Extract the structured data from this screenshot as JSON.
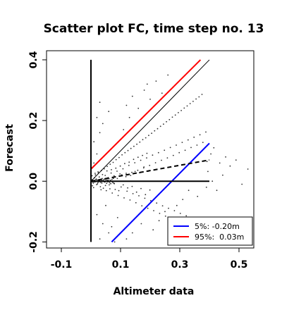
{
  "chart_data": {
    "type": "scatter",
    "title": "Scatter plot FC, time step no. 13",
    "xlabel": "Altimeter data",
    "ylabel": "Forecast",
    "xlim": [
      -0.15,
      0.55
    ],
    "ylim": [
      -0.22,
      0.43
    ],
    "x_ticks": [
      -0.1,
      0.1,
      0.3,
      0.5
    ],
    "x_tick_labels": [
      "-0.1",
      "0.1",
      "0.3",
      "0.5"
    ],
    "y_ticks": [
      -0.2,
      0.0,
      0.2,
      0.4
    ],
    "y_tick_labels": [
      "-0.2",
      "0.0",
      "0.2",
      "0.4"
    ],
    "grid": false,
    "legend_position": "bottom-right",
    "series": [
      {
        "name": "5%: -0.20m",
        "kind": "quantile-line",
        "color": "#0000ff",
        "x": [
          0.07,
          0.4
        ],
        "y": [
          -0.2,
          0.125
        ]
      },
      {
        "name": "95%:  0.03m",
        "kind": "quantile-line",
        "color": "#ff0000",
        "x": [
          0.0,
          0.37
        ],
        "y": [
          0.04,
          0.4
        ]
      },
      {
        "kind": "identity-line",
        "color": "#000000",
        "x": [
          0.0,
          0.4
        ],
        "y": [
          0.0,
          0.4
        ]
      },
      {
        "kind": "regression-line",
        "dashed": true,
        "color": "#000000",
        "x": [
          0.0,
          0.4
        ],
        "y": [
          0.0,
          0.07
        ]
      },
      {
        "kind": "zero-line-horizontal",
        "color": "#000000",
        "x": [
          0.0,
          0.4
        ],
        "y": [
          0.0,
          0.0
        ]
      },
      {
        "kind": "zero-line-vertical",
        "color": "#000000",
        "x": [
          0.0,
          0.0
        ],
        "y": [
          -0.2,
          0.4
        ]
      }
    ],
    "points": [
      [
        0.003,
        0.004
      ],
      [
        0.008,
        -0.006
      ],
      [
        0.012,
        0.011
      ],
      [
        0.005,
        -0.015
      ],
      [
        0.018,
        0.007
      ],
      [
        0.022,
        -0.009
      ],
      [
        0.015,
        0.021
      ],
      [
        0.028,
        0.014
      ],
      [
        0.032,
        -0.018
      ],
      [
        0.025,
        0.028
      ],
      [
        0.038,
        0.009
      ],
      [
        0.042,
        -0.023
      ],
      [
        0.035,
        0.035
      ],
      [
        0.048,
        0.019
      ],
      [
        0.052,
        -0.031
      ],
      [
        0.045,
        0.041
      ],
      [
        0.058,
        0.012
      ],
      [
        0.062,
        -0.012
      ],
      [
        0.055,
        0.049
      ],
      [
        0.068,
        0.027
      ],
      [
        0.072,
        -0.039
      ],
      [
        0.065,
        0.056
      ],
      [
        0.078,
        0.018
      ],
      [
        0.082,
        -0.027
      ],
      [
        0.075,
        0.062
      ],
      [
        0.088,
        0.033
      ],
      [
        0.092,
        -0.047
      ],
      [
        0.085,
        0.071
      ],
      [
        0.098,
        0.024
      ],
      [
        0.102,
        -0.019
      ],
      [
        0.095,
        0.078
      ],
      [
        0.108,
        0.041
      ],
      [
        0.112,
        -0.055
      ],
      [
        0.105,
        0.087
      ],
      [
        0.118,
        0.015
      ],
      [
        0.122,
        -0.033
      ],
      [
        0.115,
        0.094
      ],
      [
        0.128,
        0.052
      ],
      [
        0.132,
        -0.062
      ],
      [
        0.125,
        0.101
      ],
      [
        0.138,
        0.029
      ],
      [
        0.142,
        -0.041
      ],
      [
        0.135,
        0.108
      ],
      [
        0.148,
        0.061
      ],
      [
        0.152,
        -0.071
      ],
      [
        0.145,
        0.115
      ],
      [
        0.158,
        0.036
      ],
      [
        0.162,
        -0.048
      ],
      [
        0.155,
        0.122
      ],
      [
        0.168,
        0.069
      ],
      [
        0.172,
        -0.081
      ],
      [
        0.165,
        0.129
      ],
      [
        0.178,
        0.044
      ],
      [
        0.182,
        -0.056
      ],
      [
        0.175,
        0.137
      ],
      [
        0.188,
        0.077
      ],
      [
        0.192,
        -0.089
      ],
      [
        0.185,
        0.143
      ],
      [
        0.198,
        0.052
      ],
      [
        0.202,
        -0.064
      ],
      [
        0.195,
        0.151
      ],
      [
        0.208,
        0.086
      ],
      [
        0.212,
        -0.097
      ],
      [
        0.205,
        0.158
      ],
      [
        0.218,
        0.061
      ],
      [
        0.222,
        -0.072
      ],
      [
        0.215,
        0.166
      ],
      [
        0.228,
        0.094
      ],
      [
        0.232,
        -0.106
      ],
      [
        0.225,
        0.173
      ],
      [
        0.238,
        0.069
      ],
      [
        0.242,
        -0.081
      ],
      [
        0.235,
        0.181
      ],
      [
        0.248,
        0.102
      ],
      [
        0.252,
        -0.115
      ],
      [
        0.245,
        0.188
      ],
      [
        0.258,
        0.077
      ],
      [
        0.262,
        -0.089
      ],
      [
        0.255,
        0.196
      ],
      [
        0.268,
        0.111
      ],
      [
        0.272,
        -0.122
      ],
      [
        0.265,
        0.203
      ],
      [
        0.278,
        0.085
      ],
      [
        0.282,
        -0.097
      ],
      [
        0.275,
        0.211
      ],
      [
        0.288,
        0.119
      ],
      [
        0.292,
        -0.131
      ],
      [
        0.285,
        0.218
      ],
      [
        0.298,
        0.094
      ],
      [
        0.302,
        -0.106
      ],
      [
        0.295,
        0.226
      ],
      [
        0.308,
        0.128
      ],
      [
        0.312,
        -0.139
      ],
      [
        0.305,
        0.233
      ],
      [
        0.318,
        0.102
      ],
      [
        0.322,
        -0.114
      ],
      [
        0.315,
        0.241
      ],
      [
        0.328,
        0.136
      ],
      [
        0.332,
        -0.148
      ],
      [
        0.325,
        0.248
      ],
      [
        0.338,
        0.111
      ],
      [
        0.342,
        -0.122
      ],
      [
        0.335,
        0.256
      ],
      [
        0.348,
        0.145
      ],
      [
        0.352,
        -0.156
      ],
      [
        0.345,
        0.263
      ],
      [
        0.358,
        0.119
      ],
      [
        0.362,
        -0.131
      ],
      [
        0.355,
        0.271
      ],
      [
        0.368,
        0.153
      ],
      [
        0.372,
        -0.164
      ],
      [
        0.365,
        0.278
      ],
      [
        0.378,
        0.128
      ],
      [
        0.382,
        -0.139
      ],
      [
        0.375,
        0.286
      ],
      [
        0.388,
        0.162
      ],
      [
        0.392,
        0.065
      ],
      [
        0.395,
        0.032
      ],
      [
        0.405,
        0.09
      ],
      [
        0.415,
        0.11
      ],
      [
        0.425,
        -0.03
      ],
      [
        0.435,
        0.06
      ],
      [
        0.445,
        0.02
      ],
      [
        0.455,
        0.08
      ],
      [
        0.47,
        0.05
      ],
      [
        0.49,
        0.07
      ],
      [
        0.51,
        -0.01
      ],
      [
        0.53,
        0.04
      ],
      [
        0.01,
        0.06
      ],
      [
        0.02,
        0.09
      ],
      [
        0.01,
        0.13
      ],
      [
        0.03,
        0.16
      ],
      [
        0.02,
        0.21
      ],
      [
        0.04,
        0.19
      ],
      [
        0.06,
        0.23
      ],
      [
        0.03,
        0.26
      ],
      [
        0.05,
        -0.08
      ],
      [
        0.02,
        -0.11
      ],
      [
        0.04,
        -0.14
      ],
      [
        0.06,
        -0.17
      ],
      [
        0.03,
        -0.19
      ],
      [
        0.08,
        -0.2
      ],
      [
        0.09,
        -0.12
      ],
      [
        0.07,
        -0.15
      ],
      [
        0.11,
        0.17
      ],
      [
        0.13,
        0.21
      ],
      [
        0.12,
        0.25
      ],
      [
        0.14,
        0.28
      ],
      [
        0.16,
        0.24
      ],
      [
        0.18,
        0.3
      ],
      [
        0.2,
        0.27
      ],
      [
        0.22,
        0.33
      ],
      [
        0.24,
        0.29
      ],
      [
        0.26,
        0.35
      ],
      [
        0.19,
        0.32
      ],
      [
        0.17,
        -0.14
      ],
      [
        0.14,
        -0.17
      ],
      [
        0.12,
        -0.19
      ],
      [
        0.21,
        -0.16
      ],
      [
        0.23,
        -0.13
      ],
      [
        0.25,
        -0.1
      ],
      [
        0.27,
        -0.16
      ],
      [
        0.29,
        -0.08
      ],
      [
        0.31,
        -0.06
      ],
      [
        0.33,
        -0.03
      ],
      [
        0.36,
        -0.05
      ],
      [
        0.39,
        -0.02
      ],
      [
        0.41,
        0.0
      ],
      [
        0.004,
        0.018
      ],
      [
        0.009,
        -0.021
      ],
      [
        0.014,
        0.026
      ],
      [
        0.019,
        -0.011
      ],
      [
        0.024,
        0.031
      ],
      [
        0.029,
        0.003
      ],
      [
        0.034,
        -0.028
      ],
      [
        0.039,
        0.022
      ],
      [
        0.044,
        0.006
      ],
      [
        0.049,
        -0.014
      ],
      [
        0.054,
        0.034
      ],
      [
        0.059,
        0.002
      ],
      [
        0.064,
        -0.025
      ],
      [
        0.069,
        0.038
      ],
      [
        0.074,
        0.011
      ],
      [
        0.079,
        -0.008
      ],
      [
        0.084,
        0.043
      ],
      [
        0.089,
        0.009
      ],
      [
        0.094,
        -0.031
      ],
      [
        0.099,
        0.05
      ],
      [
        0.104,
        0.021
      ],
      [
        0.109,
        -0.012
      ],
      [
        0.114,
        0.058
      ],
      [
        0.119,
        0.026
      ],
      [
        0.124,
        -0.022
      ],
      [
        0.129,
        0.063
      ],
      [
        0.134,
        0.019
      ],
      [
        0.139,
        -0.017
      ],
      [
        0.144,
        0.072
      ],
      [
        0.149,
        0.032
      ],
      [
        0.154,
        -0.036
      ],
      [
        0.159,
        0.079
      ],
      [
        0.164,
        0.028
      ],
      [
        0.169,
        -0.024
      ],
      [
        0.174,
        0.085
      ],
      [
        0.179,
        0.047
      ],
      [
        0.184,
        -0.044
      ],
      [
        0.189,
        0.092
      ],
      [
        0.194,
        0.033
      ],
      [
        0.199,
        -0.029
      ],
      [
        0.001,
        0.001
      ],
      [
        0.002,
        -0.002
      ],
      [
        0.006,
        0.003
      ],
      [
        0.007,
        -0.004
      ],
      [
        0.011,
        0.002
      ],
      [
        0.013,
        -0.003
      ],
      [
        0.016,
        0.005
      ],
      [
        0.017,
        -0.001
      ],
      [
        0.021,
        0.004
      ],
      [
        0.023,
        -0.005
      ],
      [
        0.026,
        0.001
      ],
      [
        0.027,
        -0.002
      ],
      [
        0.031,
        0.006
      ],
      [
        0.033,
        -0.004
      ],
      [
        0.036,
        0.002
      ],
      [
        0.037,
        -0.006
      ],
      [
        0.041,
        0.003
      ],
      [
        0.043,
        -0.001
      ],
      [
        0.046,
        0.007
      ],
      [
        0.047,
        -0.003
      ],
      [
        0.051,
        0.005
      ],
      [
        0.053,
        -0.007
      ],
      [
        0.056,
        0.004
      ],
      [
        0.057,
        -0.002
      ],
      [
        0.061,
        0.008
      ],
      [
        0.063,
        -0.005
      ],
      [
        0.066,
        0.003
      ],
      [
        0.067,
        -0.008
      ],
      [
        0.071,
        0.006
      ],
      [
        0.073,
        -0.004
      ],
      [
        0.076,
        0.009
      ],
      [
        0.077,
        -0.006
      ]
    ]
  }
}
